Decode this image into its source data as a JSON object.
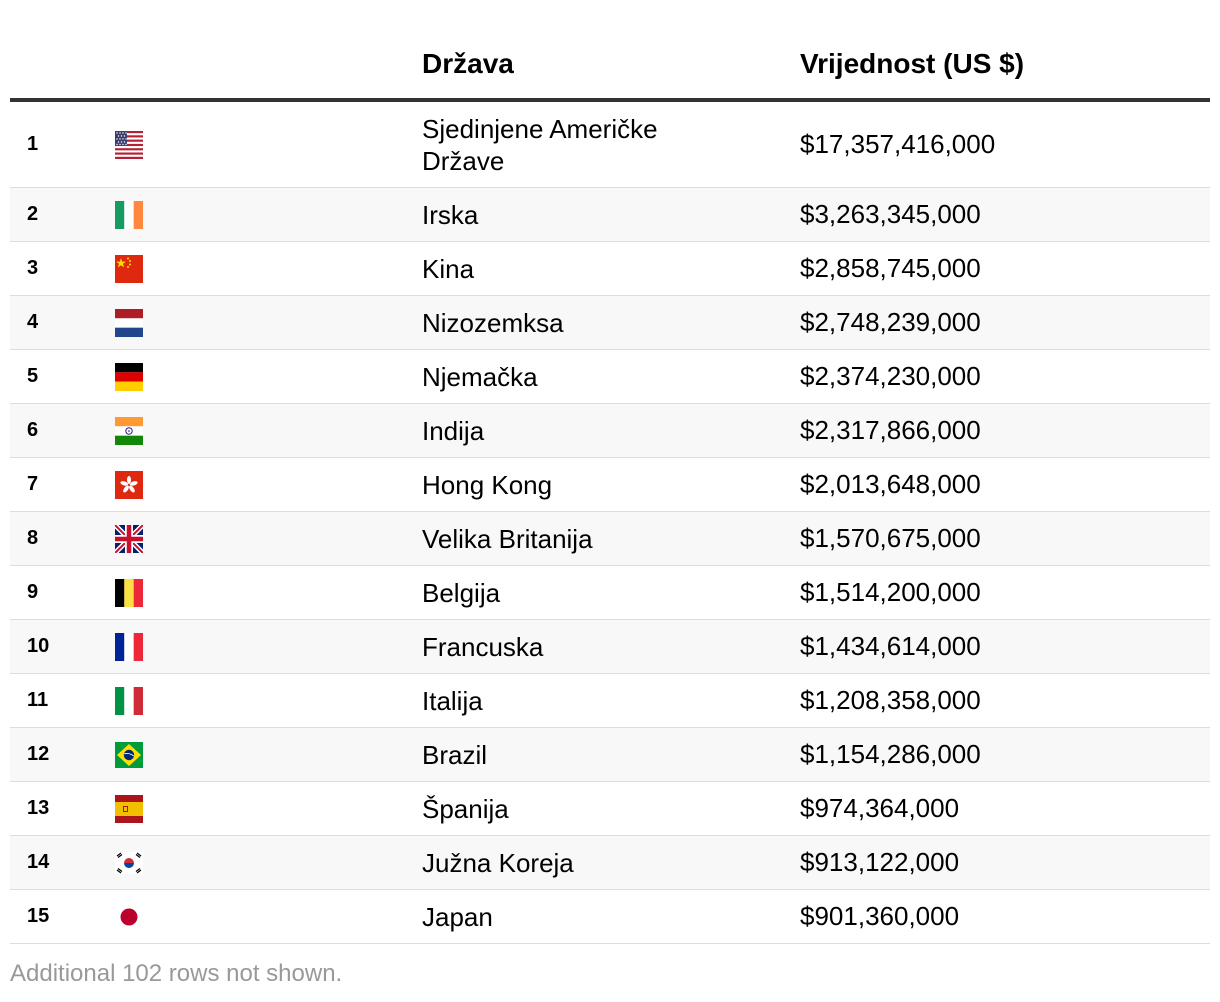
{
  "header": {
    "country_label": "Država",
    "value_label": "Vrijednost (US $)"
  },
  "rows": [
    {
      "rank": "1",
      "flag": "us-flag-icon",
      "country": "Sjedinjene Američke Države",
      "value": "$17,357,416,000"
    },
    {
      "rank": "2",
      "flag": "ireland-flag-icon",
      "country": "Irska",
      "value": "$3,263,345,000"
    },
    {
      "rank": "3",
      "flag": "china-flag-icon",
      "country": "Kina",
      "value": "$2,858,745,000"
    },
    {
      "rank": "4",
      "flag": "netherlands-flag-icon",
      "country": "Nizozemksa",
      "value": "$2,748,239,000"
    },
    {
      "rank": "5",
      "flag": "germany-flag-icon",
      "country": "Njemačka",
      "value": "$2,374,230,000"
    },
    {
      "rank": "6",
      "flag": "india-flag-icon",
      "country": "Indija",
      "value": "$2,317,866,000"
    },
    {
      "rank": "7",
      "flag": "hong-kong-flag-icon",
      "country": "Hong Kong",
      "value": "$2,013,648,000"
    },
    {
      "rank": "8",
      "flag": "uk-flag-icon",
      "country": "Velika Britanija",
      "value": "$1,570,675,000"
    },
    {
      "rank": "9",
      "flag": "belgium-flag-icon",
      "country": "Belgija",
      "value": "$1,514,200,000"
    },
    {
      "rank": "10",
      "flag": "france-flag-icon",
      "country": "Francuska",
      "value": "$1,434,614,000"
    },
    {
      "rank": "11",
      "flag": "italy-flag-icon",
      "country": "Italija",
      "value": "$1,208,358,000"
    },
    {
      "rank": "12",
      "flag": "brazil-flag-icon",
      "country": "Brazil",
      "value": "$1,154,286,000"
    },
    {
      "rank": "13",
      "flag": "spain-flag-icon",
      "country": "Španija",
      "value": "$974,364,000"
    },
    {
      "rank": "14",
      "flag": "south-korea-flag-icon",
      "country": "Južna Koreja",
      "value": "$913,122,000"
    },
    {
      "rank": "15",
      "flag": "japan-flag-icon",
      "country": "Japan",
      "value": "$901,360,000"
    }
  ],
  "footnote": "Additional 102 rows not shown."
}
